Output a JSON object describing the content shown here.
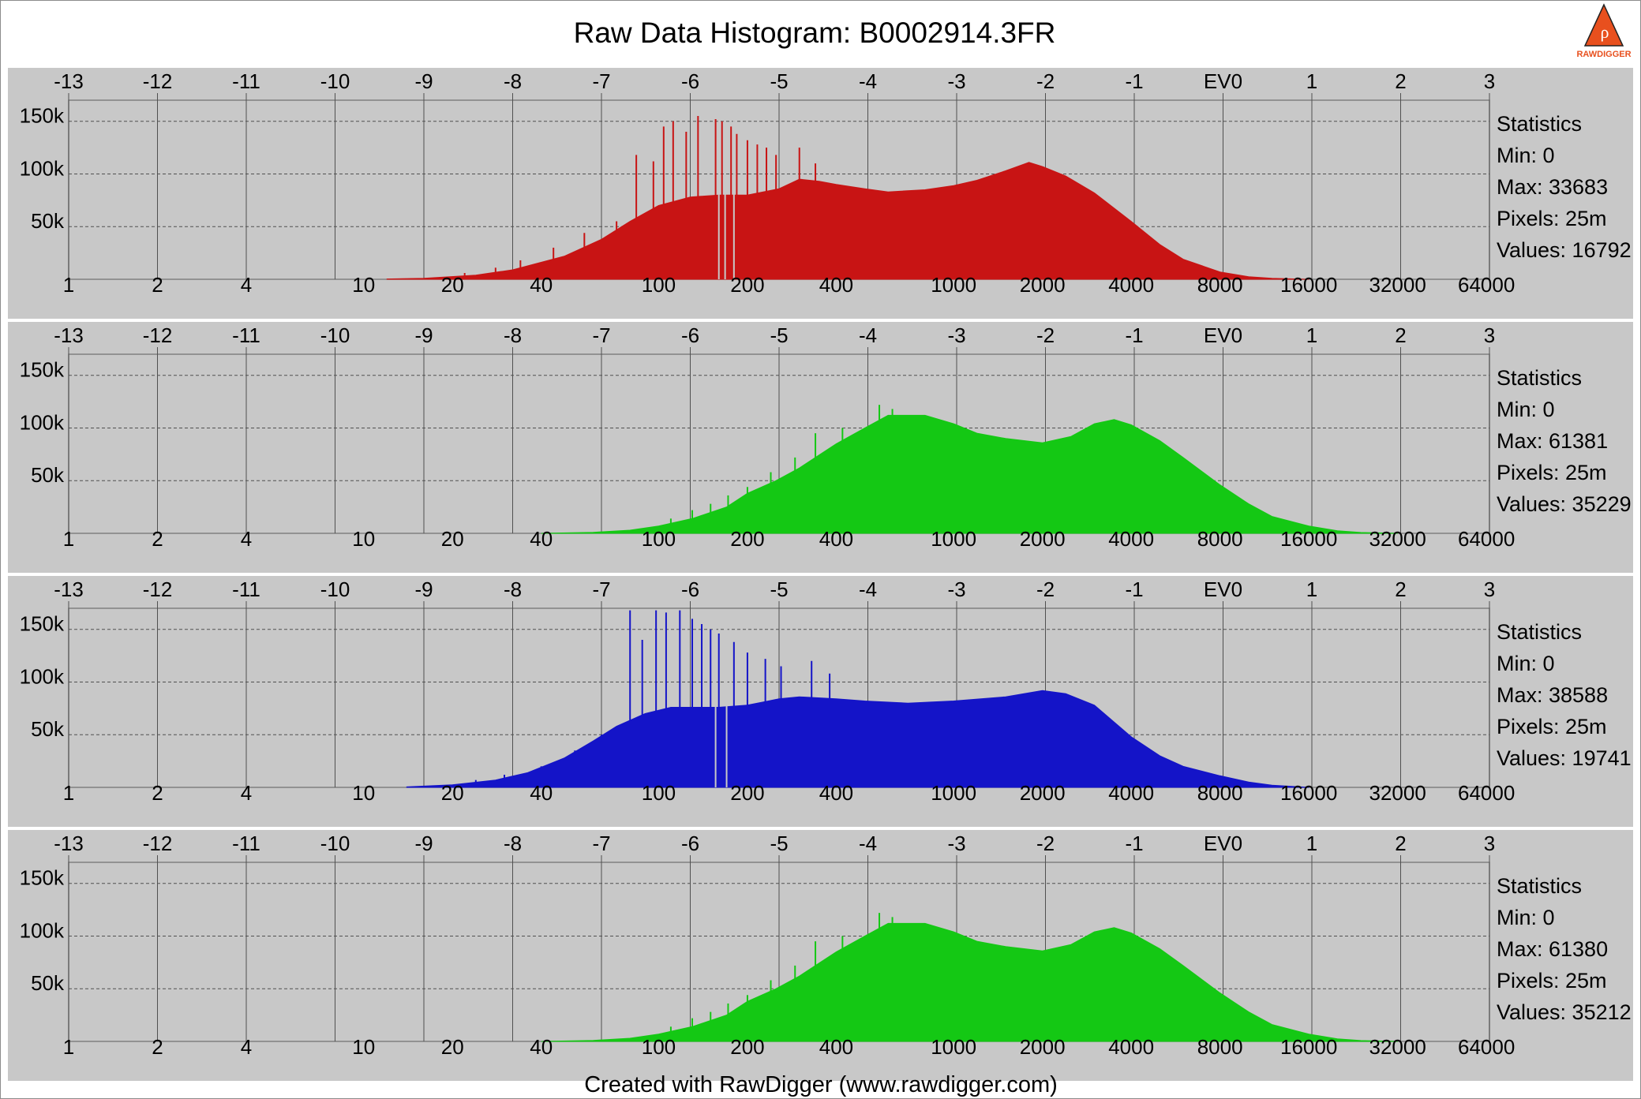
{
  "title": "Raw Data Histogram: B0002914.3FR",
  "footer": "Created with RawDigger (www.rawdigger.com)",
  "logo": {
    "text": "RAWDIGGER",
    "icon": "rawdigger-logo-icon",
    "accent": "#e8501e"
  },
  "colors": {
    "background": "#ffffff",
    "panel": "#c8c8c8",
    "plot_border": "#808080",
    "grid": "#505050"
  },
  "chart_data": [
    {
      "type": "area",
      "channel": "red",
      "color": "#c81414",
      "ev_ticks": [
        "-13",
        "-12",
        "-11",
        "-10",
        "-9",
        "-8",
        "-7",
        "-6",
        "-5",
        "-4",
        "-3",
        "-2",
        "-1",
        "EV0",
        "1",
        "2",
        "3"
      ],
      "y_ticks": [
        "150k",
        "100k",
        "50k"
      ],
      "y_tick_values": [
        150000,
        100000,
        50000
      ],
      "x_ticks": [
        "1",
        "2",
        "4",
        "10",
        "20",
        "40",
        "100",
        "200",
        "400",
        "1000",
        "2000",
        "4000",
        "8000",
        "16000",
        "32000",
        "64000"
      ],
      "x_tick_values": [
        1,
        2,
        4,
        10,
        20,
        40,
        100,
        200,
        400,
        1000,
        2000,
        4000,
        8000,
        16000,
        32000,
        64000
      ],
      "xscale": "log2",
      "xlim": [
        1,
        65536
      ],
      "ylim": [
        0,
        170000
      ],
      "envelope": {
        "x": [
          12,
          16,
          24,
          32,
          48,
          64,
          80,
          100,
          128,
          160,
          200,
          256,
          300,
          350,
          400,
          500,
          600,
          800,
          1000,
          1200,
          1500,
          1800,
          2000,
          2400,
          3000,
          4000,
          5000,
          6000,
          8000,
          10000,
          12000,
          16000
        ],
        "y": [
          300,
          1000,
          4000,
          9000,
          22000,
          38000,
          55000,
          70000,
          78000,
          80000,
          80000,
          86000,
          95000,
          93000,
          90000,
          86000,
          83000,
          85000,
          89000,
          94000,
          103000,
          111000,
          107000,
          98000,
          82000,
          55000,
          33000,
          19000,
          7000,
          2500,
          900,
          0
        ]
      },
      "spikes": [
        {
          "x": 22,
          "y": 6000
        },
        {
          "x": 28,
          "y": 11000
        },
        {
          "x": 34,
          "y": 18000
        },
        {
          "x": 44,
          "y": 30000
        },
        {
          "x": 56,
          "y": 44000
        },
        {
          "x": 72,
          "y": 55000
        },
        {
          "x": 84,
          "y": 118000
        },
        {
          "x": 96,
          "y": 112000
        },
        {
          "x": 104,
          "y": 145000
        },
        {
          "x": 112,
          "y": 150000
        },
        {
          "x": 124,
          "y": 140000
        },
        {
          "x": 136,
          "y": 155000
        },
        {
          "x": 156,
          "y": 152000
        },
        {
          "x": 164,
          "y": 150000
        },
        {
          "x": 176,
          "y": 145000
        },
        {
          "x": 184,
          "y": 138000
        },
        {
          "x": 200,
          "y": 132000
        },
        {
          "x": 216,
          "y": 128000
        },
        {
          "x": 232,
          "y": 125000
        },
        {
          "x": 250,
          "y": 118000
        },
        {
          "x": 300,
          "y": 125000
        },
        {
          "x": 340,
          "y": 110000
        }
      ],
      "gaps": [
        160,
        168,
        180
      ],
      "statistics": {
        "heading": "Statistics",
        "min": "Min: 0",
        "max": "Max: 33683",
        "pixels": "Pixels: 25m",
        "values": "Values: 16792"
      }
    },
    {
      "type": "area",
      "channel": "green",
      "color": "#14c814",
      "ev_ticks": [
        "-13",
        "-12",
        "-11",
        "-10",
        "-9",
        "-8",
        "-7",
        "-6",
        "-5",
        "-4",
        "-3",
        "-2",
        "-1",
        "EV0",
        "1",
        "2",
        "3"
      ],
      "y_ticks": [
        "150k",
        "100k",
        "50k"
      ],
      "y_tick_values": [
        150000,
        100000,
        50000
      ],
      "x_ticks": [
        "1",
        "2",
        "4",
        "10",
        "20",
        "40",
        "100",
        "200",
        "400",
        "1000",
        "2000",
        "4000",
        "8000",
        "16000",
        "32000",
        "64000"
      ],
      "x_tick_values": [
        1,
        2,
        4,
        10,
        20,
        40,
        100,
        200,
        400,
        1000,
        2000,
        4000,
        8000,
        16000,
        32000,
        64000
      ],
      "xscale": "log2",
      "xlim": [
        1,
        65536
      ],
      "ylim": [
        0,
        170000
      ],
      "envelope": {
        "x": [
          40,
          60,
          80,
          100,
          130,
          170,
          200,
          250,
          300,
          400,
          500,
          600,
          800,
          1000,
          1200,
          1500,
          2000,
          2500,
          3000,
          3500,
          4000,
          5000,
          6000,
          8000,
          10000,
          12000,
          16000,
          20000,
          24000,
          32000
        ],
        "y": [
          0,
          1000,
          3000,
          7000,
          14000,
          25000,
          38000,
          50000,
          62000,
          85000,
          100000,
          112000,
          112000,
          104000,
          95000,
          90000,
          86000,
          92000,
          104000,
          108000,
          103000,
          88000,
          72000,
          46000,
          28000,
          16000,
          7000,
          2500,
          800,
          0
        ]
      },
      "spikes": [
        {
          "x": 110,
          "y": 14000
        },
        {
          "x": 130,
          "y": 22000
        },
        {
          "x": 150,
          "y": 28000
        },
        {
          "x": 172,
          "y": 36000
        },
        {
          "x": 200,
          "y": 44000
        },
        {
          "x": 240,
          "y": 58000
        },
        {
          "x": 290,
          "y": 72000
        },
        {
          "x": 340,
          "y": 95000
        },
        {
          "x": 420,
          "y": 100000
        },
        {
          "x": 560,
          "y": 122000
        },
        {
          "x": 620,
          "y": 118000
        }
      ],
      "gaps": [],
      "statistics": {
        "heading": "Statistics",
        "min": "Min: 0",
        "max": "Max: 61381",
        "pixels": "Pixels: 25m",
        "values": "Values: 35229"
      }
    },
    {
      "type": "area",
      "channel": "blue",
      "color": "#1414c8",
      "ev_ticks": [
        "-13",
        "-12",
        "-11",
        "-10",
        "-9",
        "-8",
        "-7",
        "-6",
        "-5",
        "-4",
        "-3",
        "-2",
        "-1",
        "EV0",
        "1",
        "2",
        "3"
      ],
      "y_ticks": [
        "150k",
        "100k",
        "50k"
      ],
      "y_tick_values": [
        150000,
        100000,
        50000
      ],
      "x_ticks": [
        "1",
        "2",
        "4",
        "10",
        "20",
        "40",
        "100",
        "200",
        "400",
        "1000",
        "2000",
        "4000",
        "8000",
        "16000",
        "32000",
        "64000"
      ],
      "x_tick_values": [
        1,
        2,
        4,
        10,
        20,
        40,
        100,
        200,
        400,
        1000,
        2000,
        4000,
        8000,
        16000,
        32000,
        64000
      ],
      "xscale": "log2",
      "xlim": [
        1,
        65536
      ],
      "ylim": [
        0,
        170000
      ],
      "envelope": {
        "x": [
          14,
          20,
          28,
          36,
          48,
          60,
          72,
          90,
          110,
          128,
          160,
          200,
          256,
          300,
          400,
          500,
          700,
          1000,
          1500,
          2000,
          2400,
          3000,
          3500,
          4000,
          5000,
          6000,
          8000,
          10000,
          12000,
          16000
        ],
        "y": [
          500,
          2500,
          7000,
          14000,
          28000,
          44000,
          58000,
          70000,
          76000,
          76000,
          76000,
          78000,
          84000,
          86000,
          84000,
          82000,
          80000,
          82000,
          86000,
          92000,
          89000,
          78000,
          62000,
          48000,
          30000,
          20000,
          11000,
          5000,
          2000,
          0
        ]
      },
      "spikes": [
        {
          "x": 24,
          "y": 7000
        },
        {
          "x": 30,
          "y": 12000
        },
        {
          "x": 40,
          "y": 20000
        },
        {
          "x": 52,
          "y": 35000
        },
        {
          "x": 64,
          "y": 50000
        },
        {
          "x": 80,
          "y": 168000
        },
        {
          "x": 88,
          "y": 140000
        },
        {
          "x": 98,
          "y": 168000
        },
        {
          "x": 106,
          "y": 166000
        },
        {
          "x": 118,
          "y": 168000
        },
        {
          "x": 130,
          "y": 160000
        },
        {
          "x": 140,
          "y": 155000
        },
        {
          "x": 150,
          "y": 150000
        },
        {
          "x": 160,
          "y": 146000
        },
        {
          "x": 180,
          "y": 138000
        },
        {
          "x": 200,
          "y": 128000
        },
        {
          "x": 230,
          "y": 122000
        },
        {
          "x": 260,
          "y": 115000
        },
        {
          "x": 330,
          "y": 120000
        },
        {
          "x": 380,
          "y": 108000
        }
      ],
      "gaps": [
        156,
        170
      ],
      "statistics": {
        "heading": "Statistics",
        "min": "Min: 0",
        "max": "Max: 38588",
        "pixels": "Pixels: 25m",
        "values": "Values: 19741"
      }
    },
    {
      "type": "area",
      "channel": "green2",
      "color": "#14c814",
      "ev_ticks": [
        "-13",
        "-12",
        "-11",
        "-10",
        "-9",
        "-8",
        "-7",
        "-6",
        "-5",
        "-4",
        "-3",
        "-2",
        "-1",
        "EV0",
        "1",
        "2",
        "3"
      ],
      "y_ticks": [
        "150k",
        "100k",
        "50k"
      ],
      "y_tick_values": [
        150000,
        100000,
        50000
      ],
      "x_ticks": [
        "1",
        "2",
        "4",
        "10",
        "20",
        "40",
        "100",
        "200",
        "400",
        "1000",
        "2000",
        "4000",
        "8000",
        "16000",
        "32000",
        "64000"
      ],
      "x_tick_values": [
        1,
        2,
        4,
        10,
        20,
        40,
        100,
        200,
        400,
        1000,
        2000,
        4000,
        8000,
        16000,
        32000,
        64000
      ],
      "xscale": "log2",
      "xlim": [
        1,
        65536
      ],
      "ylim": [
        0,
        170000
      ],
      "envelope": {
        "x": [
          40,
          60,
          80,
          100,
          130,
          170,
          200,
          250,
          300,
          400,
          500,
          600,
          800,
          1000,
          1200,
          1500,
          2000,
          2500,
          3000,
          3500,
          4000,
          5000,
          6000,
          8000,
          10000,
          12000,
          16000,
          20000,
          24000,
          32000
        ],
        "y": [
          0,
          1000,
          3000,
          7000,
          14000,
          25000,
          38000,
          50000,
          62000,
          85000,
          100000,
          112000,
          112000,
          104000,
          95000,
          90000,
          86000,
          92000,
          104000,
          108000,
          103000,
          88000,
          72000,
          46000,
          28000,
          16000,
          7000,
          2500,
          800,
          0
        ]
      },
      "spikes": [
        {
          "x": 110,
          "y": 14000
        },
        {
          "x": 130,
          "y": 22000
        },
        {
          "x": 150,
          "y": 28000
        },
        {
          "x": 172,
          "y": 36000
        },
        {
          "x": 200,
          "y": 44000
        },
        {
          "x": 240,
          "y": 58000
        },
        {
          "x": 290,
          "y": 72000
        },
        {
          "x": 340,
          "y": 95000
        },
        {
          "x": 420,
          "y": 100000
        },
        {
          "x": 560,
          "y": 122000
        },
        {
          "x": 620,
          "y": 118000
        }
      ],
      "gaps": [],
      "statistics": {
        "heading": "Statistics",
        "min": "Min: 0",
        "max": "Max: 61380",
        "pixels": "Pixels: 25m",
        "values": "Values: 35212"
      }
    }
  ]
}
